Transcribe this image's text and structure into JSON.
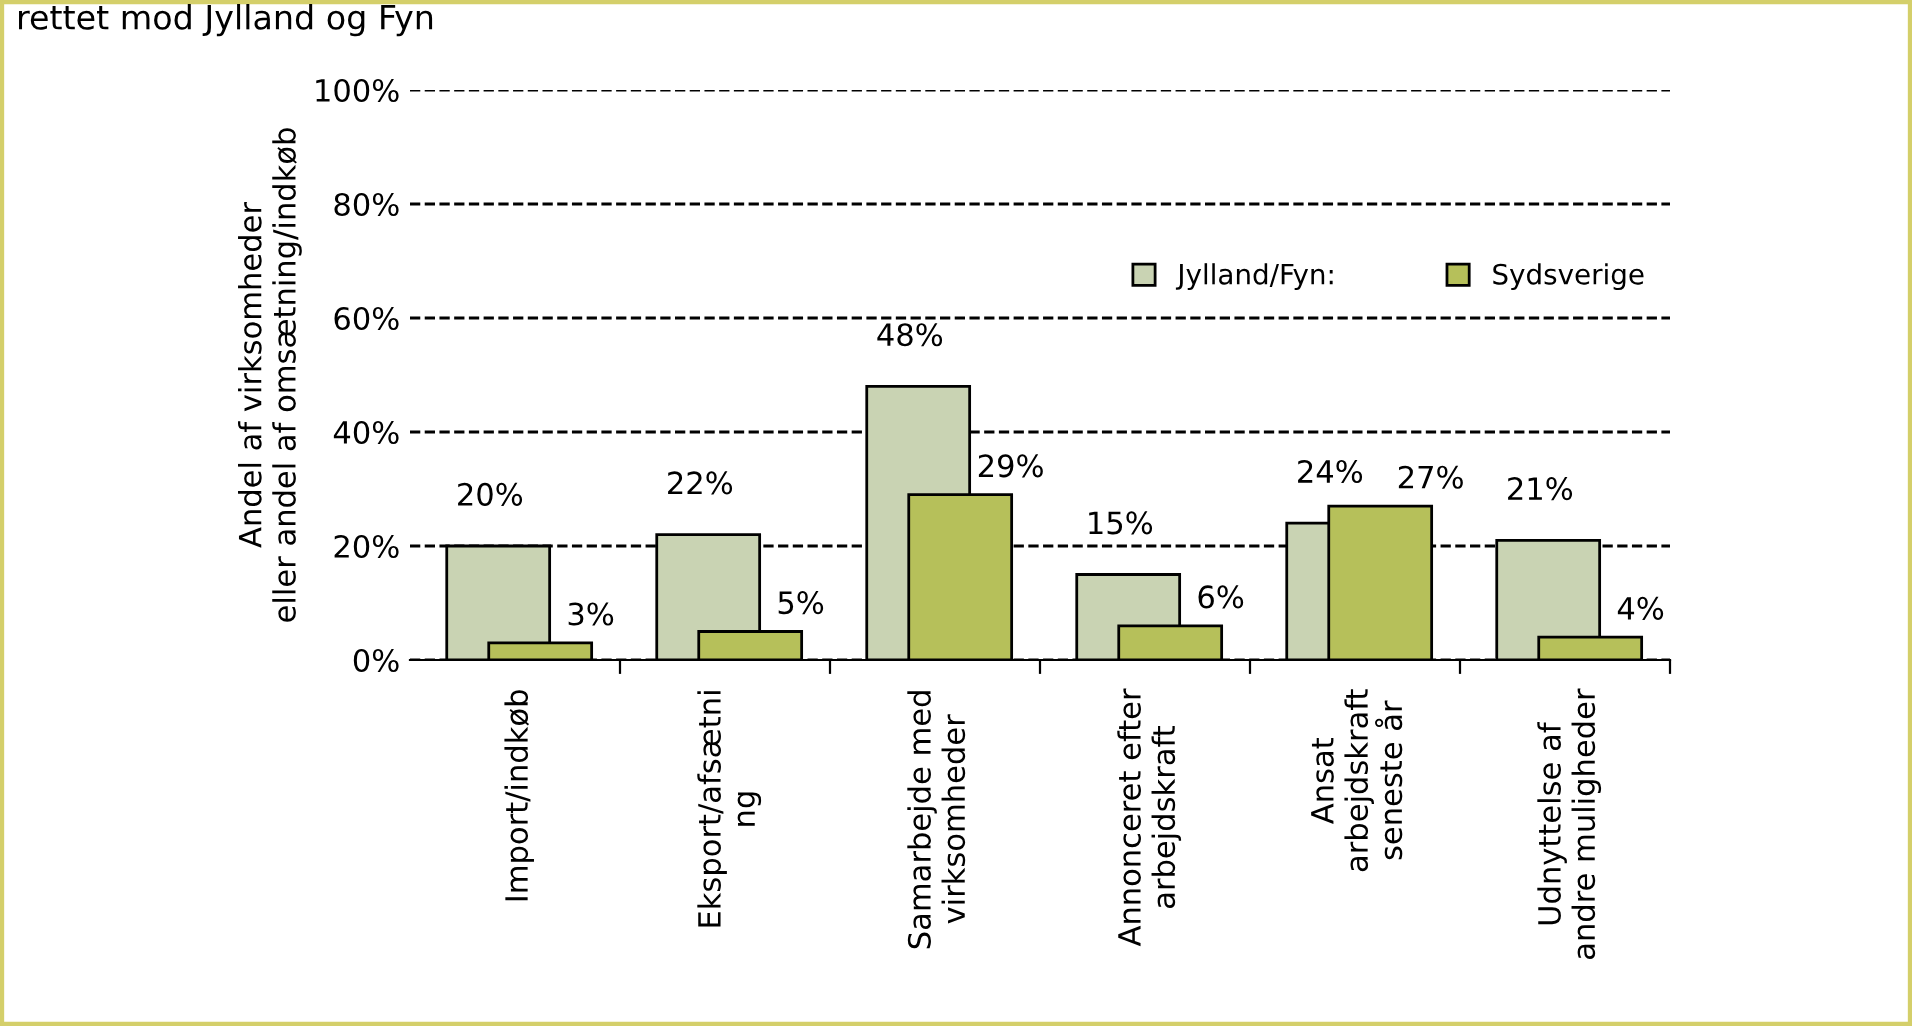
{
  "chart_data": {
    "type": "bar",
    "title": "rettet mod Jylland og Fyn",
    "ylabel": "Andel af virksomheder\neller andel af omsætning/indkøb",
    "categories": [
      "Import/indkøb",
      "Eksport/afsætni\nng",
      "Samarbejde med\nvirksomheder",
      "Annonceret efter\narbejdskraft",
      "Ansat\narbejdskraft\nseneste år",
      "Udnyttelse af\nandre muligheder"
    ],
    "series": [
      {
        "name": "Jylland/Fyn:",
        "color": "#c9d3b3",
        "values": [
          20,
          22,
          48,
          15,
          24,
          21
        ],
        "value_labels": [
          "20%",
          "22%",
          "48%",
          "15%",
          "24%",
          "21%"
        ]
      },
      {
        "name": "Sydsverige",
        "color": "#b6c05a",
        "values": [
          3,
          5,
          29,
          6,
          27,
          4
        ],
        "value_labels": [
          "3%",
          "5%",
          "29%",
          "6%",
          "27%",
          "4%"
        ]
      }
    ],
    "ylim": [
      0,
      100
    ],
    "yticks": [
      {
        "value": 0,
        "label": "0%"
      },
      {
        "value": 20,
        "label": "20%"
      },
      {
        "value": 40,
        "label": "40%"
      },
      {
        "value": 60,
        "label": "60%"
      },
      {
        "value": 80,
        "label": "80%"
      },
      {
        "value": 100,
        "label": "100%"
      }
    ],
    "grid": "y",
    "legend": "top right"
  }
}
